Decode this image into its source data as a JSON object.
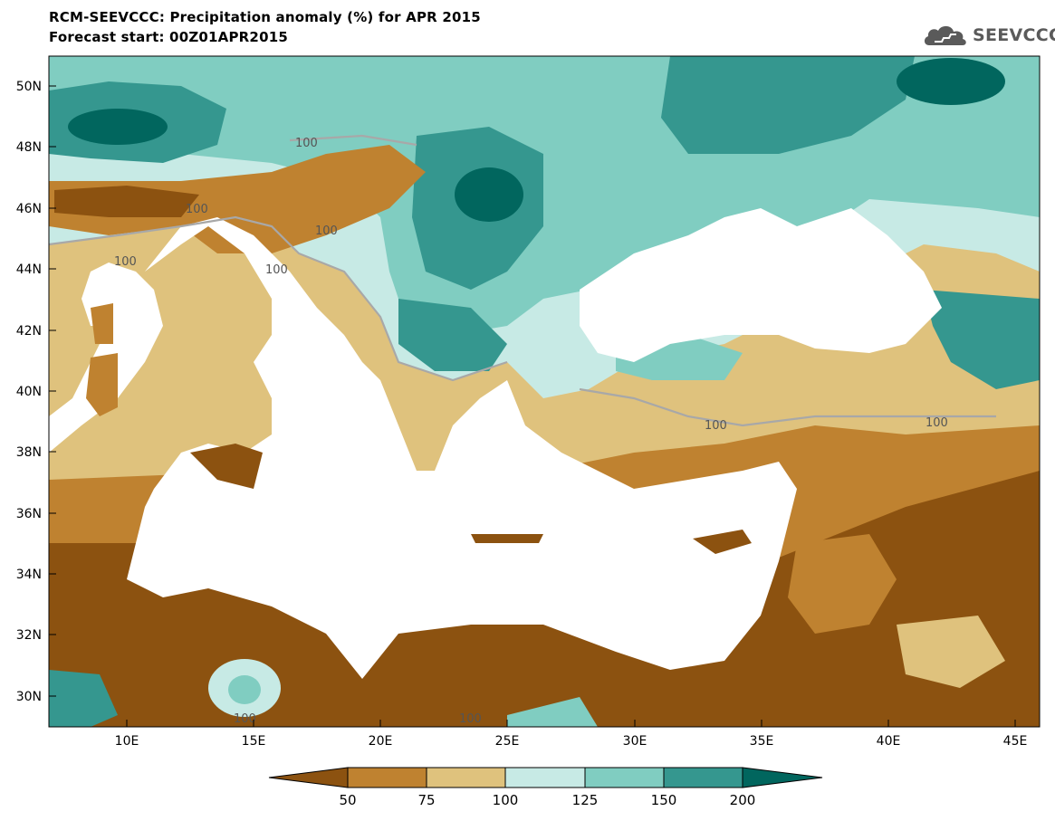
{
  "title": "RCM-SEEVCCC: Precipitation anomaly (%) for APR 2015",
  "subtitle": "Forecast start: 00Z01APR2015",
  "logo": {
    "text": "SEEVCCC",
    "icon": "cloud-icon"
  },
  "map": {
    "lon_range": [
      7,
      46
    ],
    "lat_range": [
      29,
      51
    ],
    "lat_ticks": [
      "50N",
      "48N",
      "46N",
      "44N",
      "42N",
      "40N",
      "38N",
      "36N",
      "34N",
      "32N",
      "30N"
    ],
    "lon_ticks": [
      "10E",
      "15E",
      "20E",
      "25E",
      "30E",
      "35E",
      "40E",
      "45E"
    ],
    "contour_labels": [
      "100",
      "100",
      "100",
      "100",
      "100",
      "100",
      "100",
      "100",
      "100"
    ]
  },
  "colors": {
    "below_50": "#8c5210",
    "50_75": "#bf8230",
    "75_100": "#dfc27d",
    "100_125": "#c7eae5",
    "125_150": "#80cdc1",
    "150_200": "#35978f",
    "above_200": "#01665e",
    "sea": "#ffffff"
  },
  "colorbar": {
    "labels": [
      "50",
      "75",
      "100",
      "125",
      "150",
      "200"
    ],
    "colors": [
      "#8c5210",
      "#bf8230",
      "#dfc27d",
      "#c7eae5",
      "#80cdc1",
      "#35978f",
      "#01665e"
    ]
  }
}
